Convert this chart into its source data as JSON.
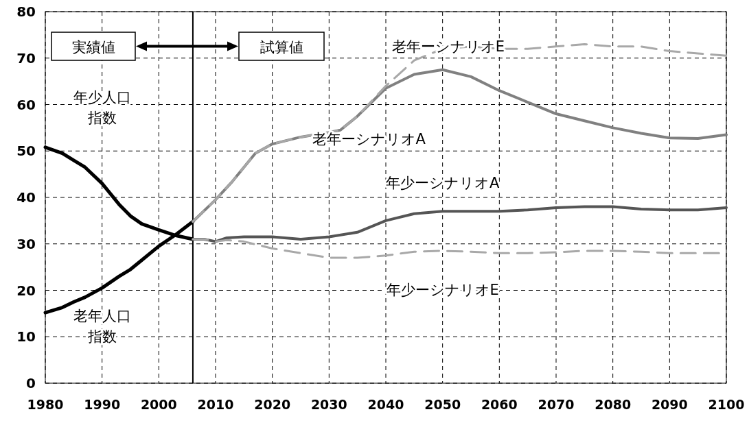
{
  "chart_data": {
    "type": "line",
    "xlim": [
      1980,
      2100
    ],
    "ylim": [
      0,
      80
    ],
    "xticks": [
      1980,
      1990,
      2000,
      2010,
      2020,
      2030,
      2040,
      2050,
      2060,
      2070,
      2080,
      2090,
      2100
    ],
    "yticks": [
      0,
      10,
      20,
      30,
      40,
      50,
      60,
      70,
      80
    ],
    "grid": true,
    "series": [
      {
        "name": "年少人口指数",
        "color": "#000000",
        "x": [
          1980,
          1983,
          1985,
          1987,
          1990,
          1993,
          1995,
          1997,
          2000,
          2003,
          2006
        ],
        "values": [
          50.8,
          49.5,
          48.0,
          46.5,
          43.0,
          38.5,
          36.0,
          34.3,
          33.0,
          31.8,
          31.0
        ]
      },
      {
        "name": "老年人口指数",
        "color": "#000000",
        "x": [
          1980,
          1983,
          1985,
          1987,
          1990,
          1993,
          1995,
          1997,
          2000,
          2003,
          2006
        ],
        "values": [
          15.2,
          16.3,
          17.5,
          18.5,
          20.5,
          23.0,
          24.5,
          26.5,
          29.5,
          32.0,
          34.8
        ]
      },
      {
        "name": "老年ーシナリオA",
        "color": "#808080",
        "x": [
          2006,
          2010,
          2013,
          2015,
          2017,
          2020,
          2025,
          2030,
          2032,
          2035,
          2040,
          2045,
          2050,
          2055,
          2060,
          2065,
          2070,
          2075,
          2080,
          2085,
          2090,
          2095,
          2100
        ],
        "values": [
          34.8,
          39.5,
          43.5,
          46.5,
          49.5,
          51.5,
          53.0,
          54.0,
          54.5,
          57.5,
          63.5,
          66.5,
          67.5,
          66.0,
          63.0,
          60.5,
          58.0,
          56.5,
          55.0,
          53.8,
          52.8,
          52.7,
          53.5
        ]
      },
      {
        "name": "老年ーシナリオE",
        "color": "#a8a8a8",
        "line_style": "dashed",
        "x": [
          2006,
          2010,
          2013,
          2015,
          2017,
          2020,
          2025,
          2030,
          2032,
          2035,
          2040,
          2045,
          2050,
          2055,
          2060,
          2065,
          2070,
          2075,
          2080,
          2085,
          2090,
          2095,
          2100
        ],
        "values": [
          34.8,
          39.5,
          43.5,
          46.5,
          49.5,
          51.5,
          53.0,
          54.0,
          54.5,
          57.5,
          64.0,
          69.5,
          72.0,
          72.5,
          72.0,
          72.0,
          72.5,
          73.0,
          72.5,
          72.5,
          71.5,
          71.0,
          70.5
        ]
      },
      {
        "name": "年少ーシナリオA",
        "color": "#555555",
        "x": [
          2006,
          2008,
          2010,
          2012,
          2015,
          2020,
          2025,
          2030,
          2035,
          2040,
          2045,
          2050,
          2055,
          2060,
          2065,
          2070,
          2075,
          2080,
          2085,
          2090,
          2095,
          2100
        ],
        "values": [
          31.0,
          31.0,
          30.5,
          31.3,
          31.5,
          31.5,
          31.0,
          31.5,
          32.5,
          35.0,
          36.5,
          37.0,
          37.0,
          37.0,
          37.3,
          37.8,
          38.0,
          38.0,
          37.5,
          37.3,
          37.3,
          37.8
        ]
      },
      {
        "name": "年少ーシナリオE",
        "color": "#a8a8a8",
        "line_style": "dashed",
        "x": [
          2006,
          2008,
          2010,
          2012,
          2015,
          2020,
          2025,
          2030,
          2035,
          2040,
          2045,
          2050,
          2055,
          2060,
          2065,
          2070,
          2075,
          2080,
          2085,
          2090,
          2095,
          2100
        ],
        "values": [
          31.0,
          31.0,
          30.5,
          30.8,
          30.5,
          29.0,
          28.0,
          27.0,
          27.0,
          27.5,
          28.3,
          28.5,
          28.3,
          28.0,
          28.0,
          28.2,
          28.5,
          28.5,
          28.3,
          28.0,
          28.0,
          28.0
        ]
      }
    ],
    "ref_lines": [
      {
        "axis": "x",
        "value": 2006,
        "label": null,
        "color": "#000000"
      }
    ],
    "annotations": [
      "実績値",
      "試算値"
    ]
  }
}
